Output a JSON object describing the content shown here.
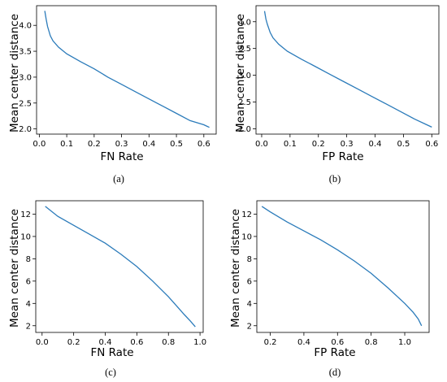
{
  "colors": {
    "line": "#2b7bba",
    "axis": "#000000"
  },
  "chart_data": [
    {
      "type": "line",
      "caption": "(a)",
      "xlabel": "FN Rate",
      "ylabel": "Mean center distance",
      "xlim": [
        -0.01,
        0.645
      ],
      "ylim": [
        1.9,
        4.38
      ],
      "xticks": [
        0.0,
        0.1,
        0.2,
        0.3,
        0.4,
        0.5,
        0.6
      ],
      "xtick_labels": [
        "0.0",
        "0.1",
        "0.2",
        "0.3",
        "0.4",
        "0.5",
        "0.6"
      ],
      "yticks": [
        2.0,
        2.5,
        3.0,
        3.5,
        4.0
      ],
      "ytick_labels": [
        "2.0",
        "2.5",
        "3.0",
        "3.5",
        "4.0"
      ],
      "series": [
        {
          "x": [
            0.02,
            0.025,
            0.03,
            0.04,
            0.05,
            0.07,
            0.1,
            0.15,
            0.2,
            0.25,
            0.3,
            0.35,
            0.4,
            0.45,
            0.5,
            0.55,
            0.6,
            0.62
          ],
          "y": [
            4.28,
            4.12,
            3.98,
            3.8,
            3.7,
            3.58,
            3.45,
            3.3,
            3.16,
            3.0,
            2.86,
            2.72,
            2.58,
            2.44,
            2.3,
            2.16,
            2.08,
            2.03
          ]
        }
      ]
    },
    {
      "type": "line",
      "caption": "(b)",
      "xlabel": "FP Rate",
      "ylabel": "Mean center distance",
      "xlim": [
        -0.02,
        0.625
      ],
      "ylim": [
        1.9,
        4.3
      ],
      "xticks": [
        0.0,
        0.1,
        0.2,
        0.3,
        0.4,
        0.5,
        0.6
      ],
      "xtick_labels": [
        "0.0",
        "0.1",
        "0.2",
        "0.3",
        "0.4",
        "0.5",
        "0.6"
      ],
      "yticks": [
        2.0,
        2.5,
        3.0,
        3.5,
        4.0
      ],
      "ytick_labels": [
        "2.0",
        "2.5",
        "3.0",
        "3.5",
        "4.0"
      ],
      "series": [
        {
          "x": [
            0.01,
            0.015,
            0.02,
            0.03,
            0.04,
            0.06,
            0.09,
            0.14,
            0.19,
            0.24,
            0.29,
            0.34,
            0.39,
            0.44,
            0.49,
            0.54,
            0.58,
            0.6
          ],
          "y": [
            4.2,
            4.05,
            3.95,
            3.8,
            3.7,
            3.58,
            3.45,
            3.3,
            3.16,
            3.02,
            2.88,
            2.74,
            2.6,
            2.46,
            2.32,
            2.18,
            2.08,
            2.03
          ]
        }
      ]
    },
    {
      "type": "line",
      "caption": "(c)",
      "xlabel": "FN Rate",
      "ylabel": "Mean center distance",
      "xlim": [
        -0.04,
        1.02
      ],
      "ylim": [
        1.4,
        13.2
      ],
      "xticks": [
        0.0,
        0.2,
        0.4,
        0.6,
        0.8,
        1.0
      ],
      "xtick_labels": [
        "0.0",
        "0.2",
        "0.4",
        "0.6",
        "0.8",
        "1.0"
      ],
      "yticks": [
        2,
        4,
        6,
        8,
        10,
        12
      ],
      "ytick_labels": [
        "2",
        "4",
        "6",
        "8",
        "10",
        "12"
      ],
      "series": [
        {
          "x": [
            0.02,
            0.1,
            0.2,
            0.3,
            0.4,
            0.5,
            0.6,
            0.7,
            0.8,
            0.85,
            0.9,
            0.94,
            0.97
          ],
          "y": [
            12.7,
            11.8,
            11.0,
            10.2,
            9.4,
            8.4,
            7.3,
            6.0,
            4.6,
            3.8,
            3.0,
            2.4,
            1.9
          ]
        }
      ]
    },
    {
      "type": "line",
      "caption": "(d)",
      "xlabel": "FP Rate",
      "ylabel": "Mean center distance",
      "xlim": [
        0.12,
        1.145
      ],
      "ylim": [
        1.4,
        13.2
      ],
      "xticks": [
        0.2,
        0.4,
        0.6,
        0.8,
        1.0
      ],
      "xtick_labels": [
        "0.2",
        "0.4",
        "0.6",
        "0.8",
        "1.0"
      ],
      "yticks": [
        2,
        4,
        6,
        8,
        10,
        12
      ],
      "ytick_labels": [
        "2",
        "4",
        "6",
        "8",
        "10",
        "12"
      ],
      "series": [
        {
          "x": [
            0.15,
            0.2,
            0.3,
            0.4,
            0.5,
            0.6,
            0.7,
            0.8,
            0.9,
            1.0,
            1.05,
            1.08,
            1.1
          ],
          "y": [
            12.7,
            12.2,
            11.3,
            10.5,
            9.7,
            8.8,
            7.8,
            6.7,
            5.4,
            4.0,
            3.2,
            2.6,
            2.0
          ]
        }
      ]
    }
  ]
}
